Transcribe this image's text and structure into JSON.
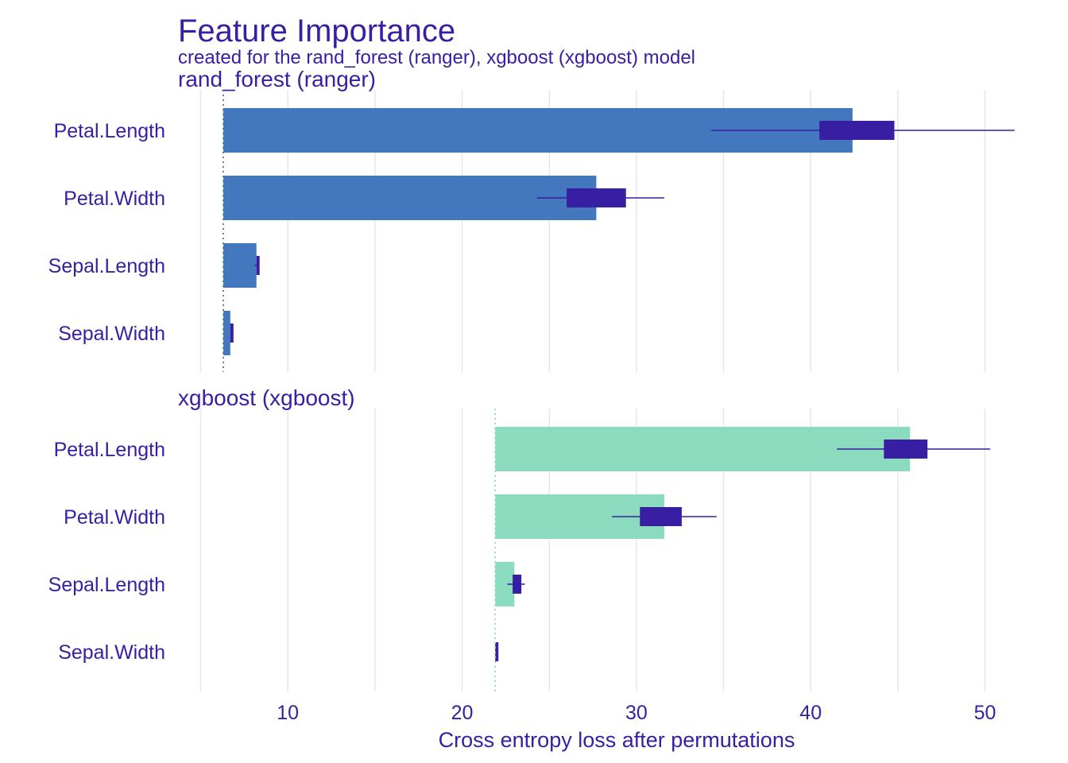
{
  "chart_data": {
    "type": "bar",
    "title": "Feature Importance",
    "subtitle": "created for the rand_forest (ranger), xgboost (xgboost) model",
    "xlabel": "Cross entropy loss after permutations",
    "xlim": [
      3.7,
      52.3
    ],
    "x_ticks": [
      10,
      20,
      30,
      40,
      50
    ],
    "grid": true,
    "categories": [
      "Petal.Length",
      "Petal.Width",
      "Sepal.Length",
      "Sepal.Width"
    ],
    "panels": [
      {
        "name": "rand_forest (ranger)",
        "baseline": 6.3,
        "values": [
          42.4,
          27.7,
          8.2,
          6.7
        ],
        "boxplots": [
          {
            "min": 34.3,
            "q1": 40.5,
            "q3": 44.8,
            "max": 51.7
          },
          {
            "min": 24.3,
            "q1": 26.0,
            "q3": 29.4,
            "max": 31.6
          },
          {
            "min": 8.1,
            "q1": 8.2,
            "q3": 8.3,
            "max": 8.3
          },
          {
            "min": 6.7,
            "q1": 6.7,
            "q3": 6.8,
            "max": 6.8
          }
        ]
      },
      {
        "name": "xgboost (xgboost)",
        "baseline": 21.9,
        "values": [
          45.7,
          31.6,
          23.0,
          21.9
        ],
        "boxplots": [
          {
            "min": 41.5,
            "q1": 44.2,
            "q3": 46.7,
            "max": 50.3
          },
          {
            "min": 28.6,
            "q1": 30.2,
            "q3": 32.6,
            "max": 34.6
          },
          {
            "min": 22.6,
            "q1": 22.9,
            "q3": 23.4,
            "max": 23.6
          },
          {
            "min": 21.9,
            "q1": 21.9,
            "q3": 22.0,
            "max": 22.0
          }
        ]
      }
    ]
  },
  "colors": {
    "text": "#371EA3",
    "grid": "#e6e6e6",
    "box": "#371EA3",
    "panel_fills": [
      "#4378BF",
      "#8BDCBE"
    ],
    "baselines": [
      "#4378BF",
      "#8BDCBE"
    ]
  }
}
